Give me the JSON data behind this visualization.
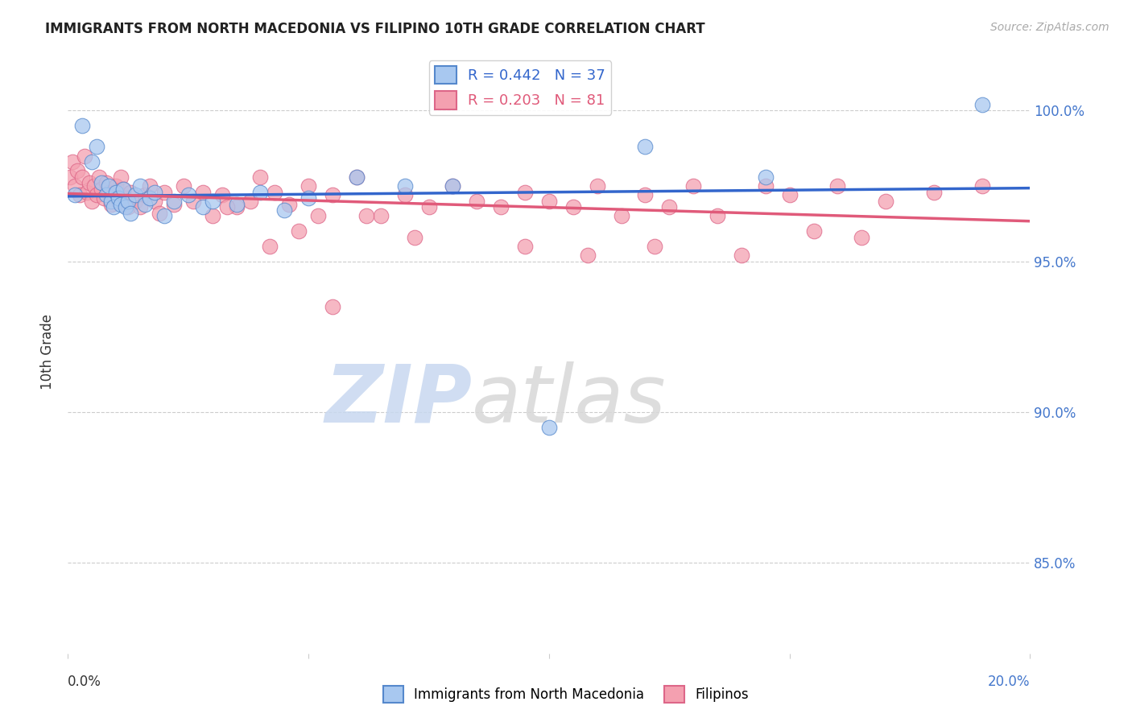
{
  "title": "IMMIGRANTS FROM NORTH MACEDONIA VS FILIPINO 10TH GRADE CORRELATION CHART",
  "source": "Source: ZipAtlas.com",
  "ylabel": "10th Grade",
  "y_ticks": [
    85.0,
    90.0,
    95.0,
    100.0
  ],
  "y_tick_labels": [
    "85.0%",
    "90.0%",
    "95.0%",
    "100.0%"
  ],
  "x_range": [
    0.0,
    20.0
  ],
  "y_range": [
    82.0,
    102.0
  ],
  "blue_R": 0.442,
  "blue_N": 37,
  "pink_R": 0.203,
  "pink_N": 81,
  "blue_color": "#A8C8F0",
  "pink_color": "#F4A0B0",
  "blue_edge_color": "#5588CC",
  "pink_edge_color": "#DD6688",
  "blue_line_color": "#3366CC",
  "pink_line_color": "#E05A7A",
  "legend_blue_text_color": "#3366CC",
  "legend_pink_text_color": "#E05A7A",
  "watermark_zip_color": "#C8D8F0",
  "watermark_atlas_color": "#D8D8D8",
  "blue_scatter_x": [
    0.15,
    0.3,
    0.5,
    0.6,
    0.7,
    0.8,
    0.85,
    0.9,
    0.95,
    1.0,
    1.05,
    1.1,
    1.15,
    1.2,
    1.25,
    1.3,
    1.4,
    1.5,
    1.6,
    1.7,
    1.8,
    2.0,
    2.2,
    2.5,
    2.8,
    3.0,
    3.5,
    4.0,
    4.5,
    5.0,
    6.0,
    7.0,
    8.0,
    10.0,
    12.0,
    14.5,
    19.0
  ],
  "blue_scatter_y": [
    97.2,
    99.5,
    98.3,
    98.8,
    97.6,
    97.2,
    97.5,
    97.0,
    96.8,
    97.3,
    97.1,
    96.9,
    97.4,
    96.8,
    97.0,
    96.6,
    97.2,
    97.5,
    96.9,
    97.1,
    97.3,
    96.5,
    97.0,
    97.2,
    96.8,
    97.0,
    96.9,
    97.3,
    96.7,
    97.1,
    97.8,
    97.5,
    97.5,
    89.5,
    98.8,
    97.8,
    100.2
  ],
  "pink_scatter_x": [
    0.05,
    0.1,
    0.15,
    0.2,
    0.25,
    0.3,
    0.35,
    0.4,
    0.45,
    0.5,
    0.55,
    0.6,
    0.65,
    0.7,
    0.75,
    0.8,
    0.85,
    0.9,
    0.95,
    1.0,
    1.05,
    1.1,
    1.15,
    1.2,
    1.25,
    1.3,
    1.4,
    1.5,
    1.6,
    1.7,
    1.8,
    1.9,
    2.0,
    2.2,
    2.4,
    2.6,
    2.8,
    3.0,
    3.2,
    3.5,
    3.8,
    4.0,
    4.3,
    4.6,
    5.0,
    5.5,
    6.0,
    6.5,
    7.0,
    7.5,
    8.0,
    8.5,
    9.0,
    9.5,
    10.0,
    10.5,
    11.0,
    11.5,
    12.0,
    12.5,
    13.0,
    13.5,
    14.5,
    15.0,
    16.0,
    17.0,
    18.0,
    19.0,
    5.2,
    6.2,
    7.2,
    4.8,
    9.5,
    10.8,
    12.2,
    14.0,
    16.5,
    5.5,
    3.3,
    4.2,
    15.5
  ],
  "pink_scatter_y": [
    97.8,
    98.3,
    97.5,
    98.0,
    97.2,
    97.8,
    98.5,
    97.3,
    97.6,
    97.0,
    97.5,
    97.2,
    97.8,
    97.4,
    97.1,
    97.6,
    97.3,
    96.9,
    97.2,
    97.5,
    97.0,
    97.8,
    97.4,
    97.1,
    96.8,
    97.3,
    97.0,
    96.8,
    97.2,
    97.5,
    97.0,
    96.6,
    97.3,
    96.9,
    97.5,
    97.0,
    97.3,
    96.5,
    97.2,
    96.8,
    97.0,
    97.8,
    97.3,
    96.9,
    97.5,
    97.2,
    97.8,
    96.5,
    97.2,
    96.8,
    97.5,
    97.0,
    96.8,
    97.3,
    97.0,
    96.8,
    97.5,
    96.5,
    97.2,
    96.8,
    97.5,
    96.5,
    97.5,
    97.2,
    97.5,
    97.0,
    97.3,
    97.5,
    96.5,
    96.5,
    95.8,
    96.0,
    95.5,
    95.2,
    95.5,
    95.2,
    95.8,
    93.5,
    96.8,
    95.5,
    96.0
  ],
  "grid_color": "#CCCCCC",
  "background_color": "#FFFFFF",
  "title_fontsize": 12,
  "axis_label_color": "#333333",
  "right_axis_label_color": "#4477CC"
}
